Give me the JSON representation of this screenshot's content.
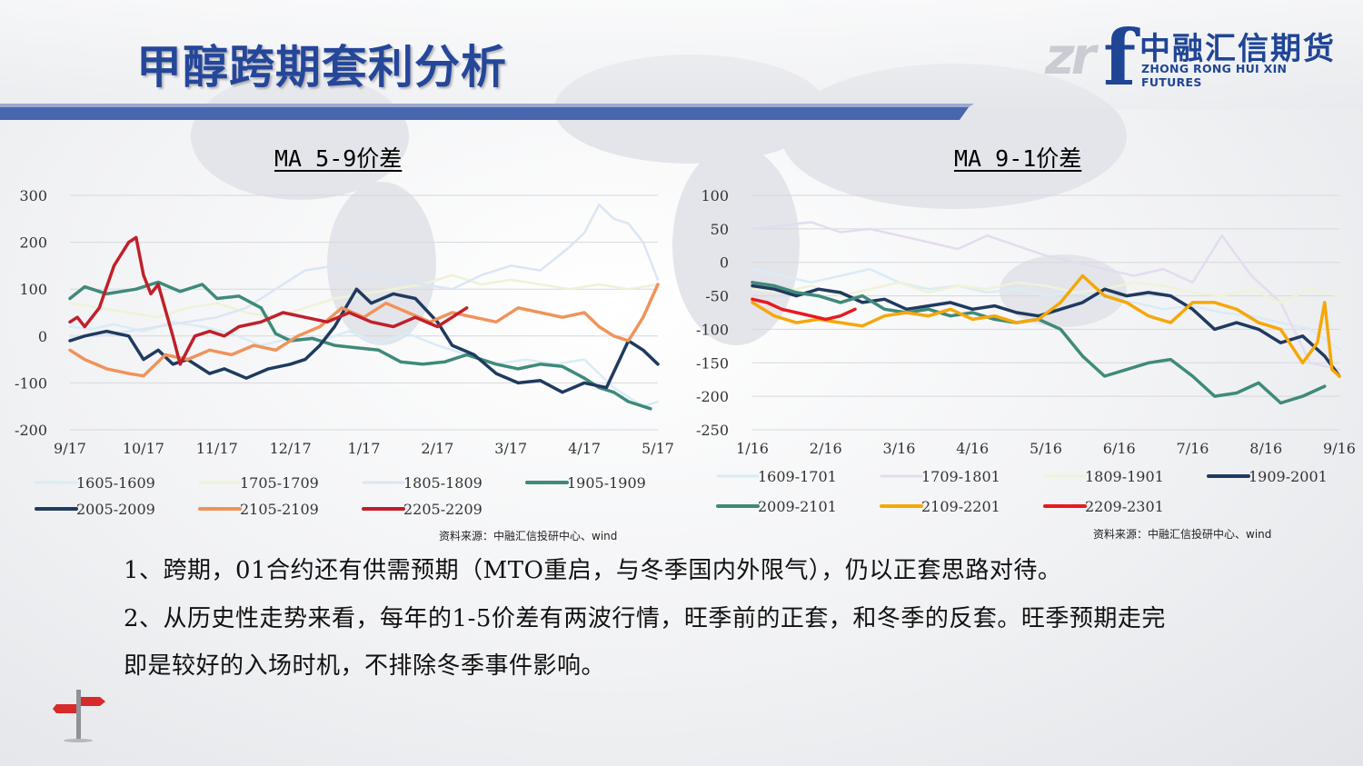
{
  "title": "甲醇跨期套利分析",
  "logo": {
    "mark_gray": "zr",
    "mark_blue": "f",
    "name_cn": "中融汇信期货",
    "name_en": "ZHONG RONG HUI XIN FUTURES"
  },
  "colors": {
    "title_blue": "#25479a",
    "brand_blue": "#1f4595",
    "bar_blue": "#3d5ea8"
  },
  "chart_data": [
    {
      "type": "line",
      "title": "MA 5-9价差",
      "x_ticks": [
        "9/17",
        "10/17",
        "11/17",
        "12/17",
        "1/17",
        "2/17",
        "3/17",
        "4/17",
        "5/17"
      ],
      "ylim": [
        -200,
        300
      ],
      "y_ticks": [
        300,
        200,
        100,
        0,
        -100,
        -200
      ],
      "grid": true,
      "legend_position": "bottom",
      "source": "资料来源：中融汇信投研中心、wind",
      "series": [
        {
          "name": "1605-1609",
          "color": "#d9ecf7",
          "bold": false,
          "x": [
            0,
            0.3,
            0.6,
            1.0,
            1.4,
            1.8,
            2.2,
            2.6,
            3.0,
            3.4,
            3.8,
            4.2,
            4.6,
            5.0,
            5.4,
            5.8,
            6.2,
            6.6,
            7.0,
            7.2,
            7.4,
            7.6,
            7.8,
            8.0
          ],
          "y": [
            20,
            15,
            25,
            10,
            30,
            20,
            5,
            -20,
            -5,
            -10,
            10,
            -15,
            5,
            -20,
            -40,
            -60,
            -50,
            -60,
            -50,
            -80,
            -110,
            -130,
            -150,
            -140
          ]
        },
        {
          "name": "1705-1709",
          "color": "#eef2d8",
          "bold": false,
          "x": [
            0,
            0.4,
            0.8,
            1.2,
            1.6,
            2.0,
            2.4,
            2.8,
            3.2,
            3.6,
            4.0,
            4.4,
            4.8,
            5.2,
            5.6,
            6.0,
            6.4,
            6.8,
            7.2,
            7.6,
            8.0
          ],
          "y": [
            70,
            60,
            50,
            40,
            60,
            70,
            50,
            40,
            60,
            80,
            90,
            100,
            110,
            130,
            110,
            120,
            110,
            100,
            110,
            100,
            110
          ]
        },
        {
          "name": "1805-1809",
          "color": "#dbe6f4",
          "bold": false,
          "x": [
            0,
            0.4,
            0.8,
            1.2,
            1.6,
            2.0,
            2.4,
            2.8,
            3.2,
            3.6,
            4.0,
            4.4,
            4.8,
            5.2,
            5.6,
            6.0,
            6.4,
            6.8,
            7.0,
            7.2,
            7.4,
            7.6,
            7.8,
            8.0
          ],
          "y": [
            0,
            0,
            10,
            20,
            30,
            40,
            60,
            100,
            140,
            150,
            130,
            120,
            110,
            100,
            130,
            150,
            140,
            190,
            220,
            280,
            250,
            240,
            200,
            120
          ]
        },
        {
          "name": "1905-1909",
          "color": "#3f8a7a",
          "bold": true,
          "x": [
            0,
            0.2,
            0.5,
            0.9,
            1.2,
            1.5,
            1.8,
            2.0,
            2.3,
            2.6,
            2.8,
            3.0,
            3.3,
            3.6,
            3.9,
            4.2,
            4.5,
            4.8,
            5.1,
            5.4,
            5.8,
            6.1,
            6.4,
            6.7,
            7.0,
            7.2,
            7.4,
            7.6,
            7.8,
            7.9
          ],
          "y": [
            80,
            105,
            90,
            100,
            115,
            95,
            110,
            80,
            85,
            60,
            5,
            -10,
            -5,
            -20,
            -25,
            -30,
            -55,
            -60,
            -55,
            -40,
            -60,
            -70,
            -60,
            -65,
            -90,
            -110,
            -120,
            -140,
            -150,
            -155
          ]
        },
        {
          "name": "2005-2009",
          "color": "#1f3a5f",
          "bold": true,
          "x": [
            0,
            0.2,
            0.5,
            0.8,
            1.0,
            1.2,
            1.4,
            1.6,
            1.9,
            2.1,
            2.4,
            2.7,
            3.0,
            3.2,
            3.4,
            3.6,
            3.9,
            4.1,
            4.4,
            4.7,
            5.0,
            5.2,
            5.5,
            5.8,
            6.1,
            6.4,
            6.7,
            7.0,
            7.3,
            7.6,
            7.8,
            8.0
          ],
          "y": [
            -10,
            0,
            10,
            0,
            -50,
            -30,
            -60,
            -50,
            -80,
            -70,
            -90,
            -70,
            -60,
            -50,
            -20,
            20,
            100,
            70,
            90,
            80,
            30,
            -20,
            -40,
            -80,
            -100,
            -95,
            -120,
            -100,
            -110,
            -10,
            -30,
            -60
          ]
        },
        {
          "name": "2105-2109",
          "color": "#f0935a",
          "bold": true,
          "x": [
            0,
            0.2,
            0.5,
            0.8,
            1.0,
            1.3,
            1.6,
            1.9,
            2.2,
            2.5,
            2.8,
            3.1,
            3.4,
            3.7,
            4.0,
            4.3,
            4.6,
            4.9,
            5.2,
            5.5,
            5.8,
            6.1,
            6.4,
            6.7,
            7.0,
            7.2,
            7.4,
            7.6,
            7.8,
            8.0
          ],
          "y": [
            -30,
            -50,
            -70,
            -80,
            -85,
            -40,
            -50,
            -30,
            -40,
            -20,
            -30,
            0,
            20,
            60,
            40,
            70,
            50,
            30,
            50,
            40,
            30,
            60,
            50,
            40,
            50,
            20,
            0,
            -10,
            40,
            110
          ]
        },
        {
          "name": "2205-2209",
          "color": "#c0202a",
          "bold": true,
          "x": [
            0,
            0.1,
            0.2,
            0.4,
            0.6,
            0.8,
            0.9,
            1.0,
            1.1,
            1.2,
            1.4,
            1.5,
            1.6,
            1.7,
            1.9,
            2.1,
            2.3,
            2.6,
            2.9,
            3.2,
            3.5,
            3.8,
            4.1,
            4.4,
            4.7,
            5.0,
            5.2,
            5.4
          ],
          "y": [
            30,
            40,
            20,
            60,
            150,
            200,
            210,
            130,
            90,
            110,
            0,
            -60,
            -30,
            0,
            10,
            0,
            20,
            30,
            50,
            40,
            30,
            50,
            30,
            20,
            40,
            20,
            40,
            60
          ]
        }
      ]
    },
    {
      "type": "line",
      "title": "MA 9-1价差",
      "x_ticks": [
        "1/16",
        "2/16",
        "3/16",
        "4/16",
        "5/16",
        "6/16",
        "7/16",
        "8/16",
        "9/16"
      ],
      "ylim": [
        -250,
        100
      ],
      "y_ticks": [
        100,
        50,
        0,
        -50,
        -100,
        -150,
        -200,
        -250
      ],
      "grid": true,
      "legend_position": "bottom",
      "source": "资料来源：中融汇信投研中心、wind",
      "series": [
        {
          "name": "1609-1701",
          "color": "#d9ecf7",
          "bold": false,
          "x": [
            0,
            0.4,
            0.8,
            1.2,
            1.6,
            2.0,
            2.4,
            2.8,
            3.2,
            3.6,
            4.0,
            4.4,
            4.8,
            5.2,
            5.6,
            6.0,
            6.4,
            6.8,
            7.2,
            7.6,
            8.0
          ],
          "y": [
            -10,
            -20,
            -30,
            -20,
            -10,
            -30,
            -40,
            -35,
            -45,
            -40,
            -50,
            -45,
            -55,
            -60,
            -70,
            -65,
            -75,
            -80,
            -90,
            -100,
            -130
          ]
        },
        {
          "name": "1709-1801",
          "color": "#e3dcef",
          "bold": false,
          "x": [
            0,
            0.4,
            0.8,
            1.2,
            1.6,
            2.0,
            2.4,
            2.8,
            3.2,
            3.6,
            4.0,
            4.4,
            4.8,
            5.2,
            5.6,
            6.0,
            6.4,
            6.8,
            7.2,
            7.6,
            8.0
          ],
          "y": [
            50,
            55,
            60,
            45,
            50,
            40,
            30,
            20,
            40,
            25,
            10,
            0,
            -10,
            -20,
            -10,
            -30,
            40,
            -20,
            -60,
            -150,
            -160
          ]
        },
        {
          "name": "1809-1901",
          "color": "#eef2d8",
          "bold": false,
          "x": [
            0,
            0.4,
            0.8,
            1.2,
            1.6,
            2.0,
            2.4,
            2.8,
            3.2,
            3.6,
            4.0,
            4.4,
            4.8,
            5.2,
            5.6,
            6.0,
            6.4,
            6.8,
            7.2,
            7.6,
            8.0
          ],
          "y": [
            -40,
            -45,
            -35,
            -50,
            -40,
            -30,
            -45,
            -35,
            -40,
            -30,
            -35,
            -45,
            -40,
            -30,
            -35,
            -45,
            -50,
            -40,
            -60,
            -40,
            -50
          ]
        },
        {
          "name": "1909-2001",
          "color": "#1f3a5f",
          "bold": true,
          "x": [
            0,
            0.3,
            0.6,
            0.9,
            1.2,
            1.5,
            1.8,
            2.1,
            2.4,
            2.7,
            3.0,
            3.3,
            3.6,
            3.9,
            4.2,
            4.5,
            4.8,
            5.1,
            5.4,
            5.7,
            6.0,
            6.3,
            6.6,
            6.9,
            7.2,
            7.5,
            7.8,
            8.0
          ],
          "y": [
            -35,
            -40,
            -50,
            -40,
            -45,
            -60,
            -55,
            -70,
            -65,
            -60,
            -70,
            -65,
            -75,
            -80,
            -70,
            -60,
            -40,
            -50,
            -45,
            -50,
            -70,
            -100,
            -90,
            -100,
            -120,
            -110,
            -140,
            -170
          ]
        },
        {
          "name": "2009-2101",
          "color": "#3f8a7a",
          "bold": true,
          "x": [
            0,
            0.3,
            0.6,
            0.9,
            1.2,
            1.5,
            1.8,
            2.1,
            2.4,
            2.7,
            3.0,
            3.3,
            3.6,
            3.9,
            4.2,
            4.5,
            4.8,
            5.1,
            5.4,
            5.7,
            6.0,
            6.3,
            6.6,
            6.9,
            7.2,
            7.5,
            7.8
          ],
          "y": [
            -30,
            -35,
            -45,
            -50,
            -60,
            -50,
            -70,
            -75,
            -70,
            -80,
            -75,
            -85,
            -90,
            -85,
            -100,
            -140,
            -170,
            -160,
            -150,
            -145,
            -170,
            -200,
            -195,
            -180,
            -210,
            -200,
            -185
          ]
        },
        {
          "name": "2109-2201",
          "color": "#f5a70a",
          "bold": true,
          "x": [
            0,
            0.3,
            0.6,
            0.9,
            1.2,
            1.5,
            1.8,
            2.1,
            2.4,
            2.7,
            3.0,
            3.3,
            3.6,
            3.9,
            4.2,
            4.5,
            4.8,
            5.1,
            5.4,
            5.7,
            6.0,
            6.3,
            6.6,
            6.9,
            7.2,
            7.5,
            7.7,
            7.8,
            7.9,
            8.0
          ],
          "y": [
            -60,
            -80,
            -90,
            -85,
            -90,
            -95,
            -80,
            -75,
            -80,
            -70,
            -85,
            -80,
            -90,
            -85,
            -60,
            -20,
            -50,
            -60,
            -80,
            -90,
            -60,
            -60,
            -70,
            -90,
            -100,
            -150,
            -120,
            -60,
            -160,
            -170
          ]
        },
        {
          "name": "2209-2301",
          "color": "#e8191f",
          "bold": true,
          "x": [
            0,
            0.2,
            0.4,
            0.6,
            0.8,
            1.0,
            1.2,
            1.4
          ],
          "y": [
            -55,
            -60,
            -70,
            -75,
            -80,
            -85,
            -80,
            -70
          ]
        }
      ]
    }
  ],
  "paragraphs": [
    "1、跨期，01合约还有供需预期（MTO重启，与冬季国内外限气），仍以正套思路对待。",
    "2、从历史性走势来看，每年的1-5价差有两波行情，旺季前的正套，和冬季的反套。旺季预期走完",
    "即是较好的入场时机，不排除冬季事件影响。"
  ]
}
